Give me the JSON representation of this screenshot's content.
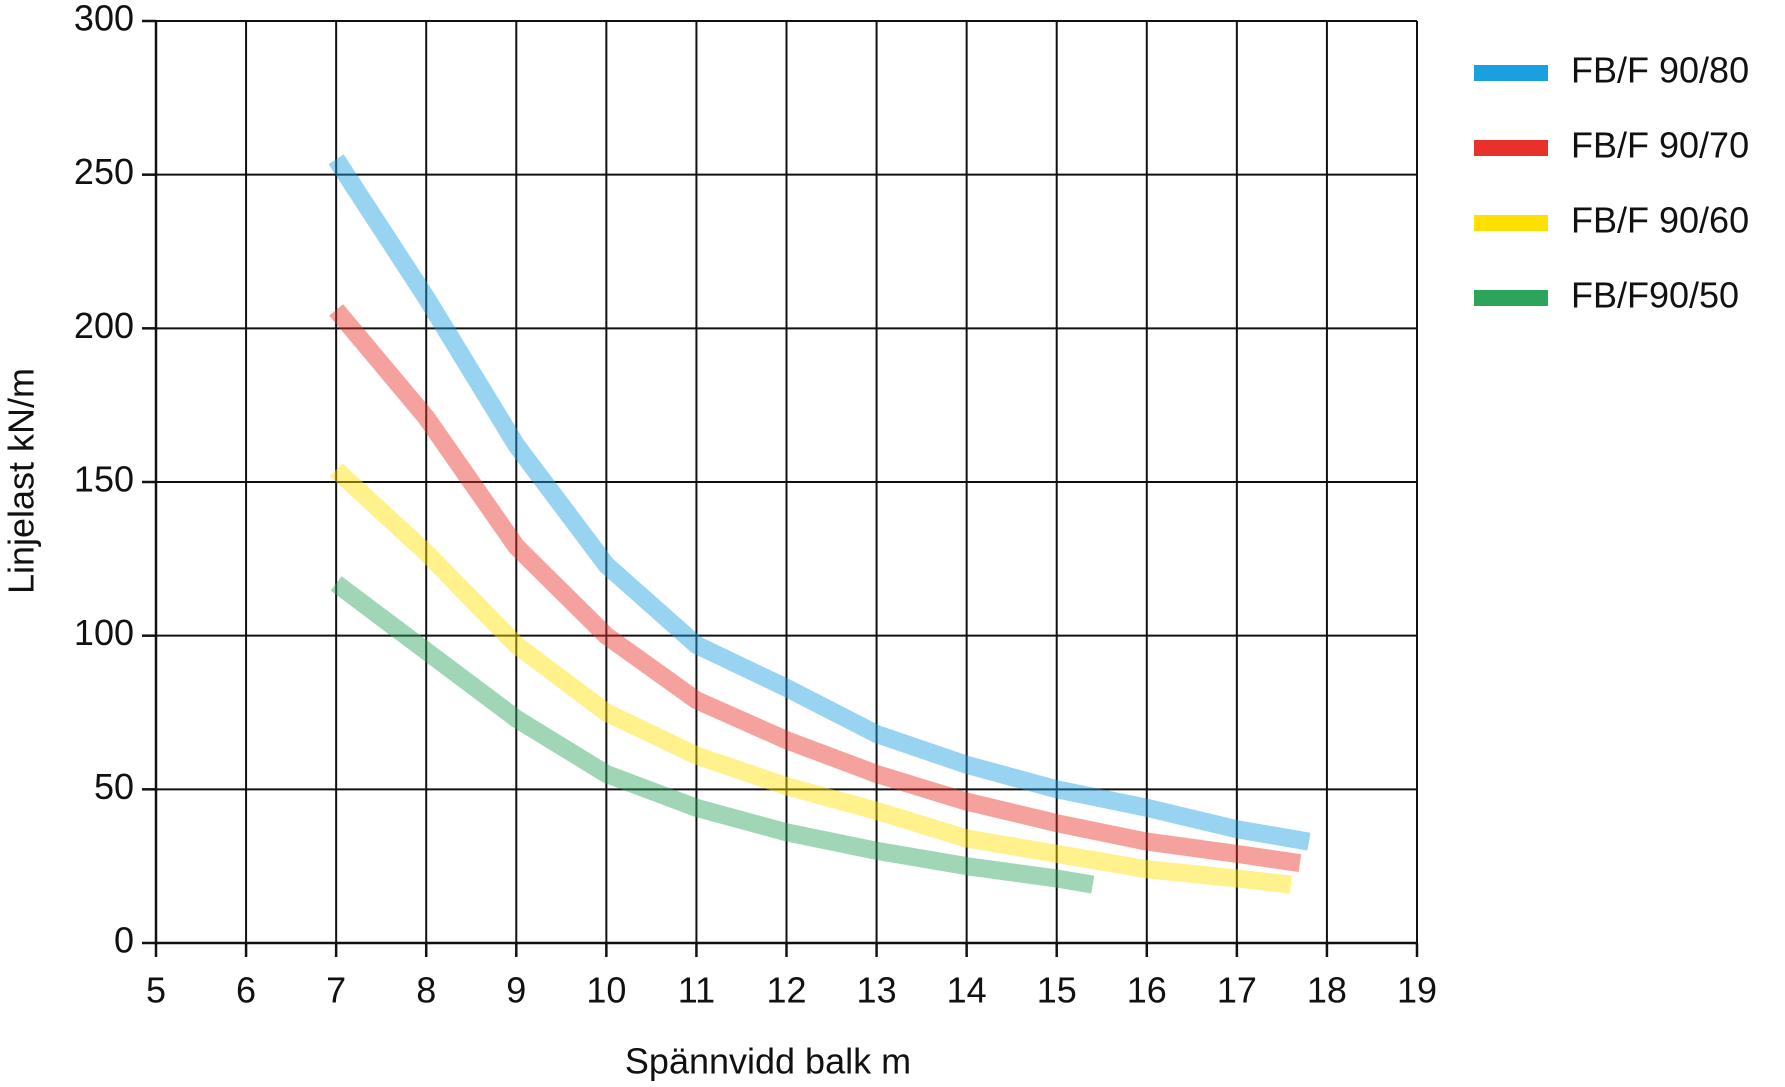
{
  "chart_data": {
    "type": "line",
    "x_label": "Spännvidd balk m",
    "y_label": "Linjelast kN/m",
    "xlim": [
      5,
      19
    ],
    "xticks": [
      5,
      6,
      7,
      8,
      9,
      10,
      11,
      12,
      13,
      14,
      15,
      16,
      17,
      18,
      19
    ],
    "ylim": [
      0,
      300
    ],
    "yticks": [
      0,
      50,
      100,
      150,
      200,
      250,
      300
    ],
    "grid": true,
    "legend": "right",
    "series": [
      {
        "name": "FB/F 90/80",
        "color": "#1a9fe0",
        "x": [
          7,
          8,
          9,
          10,
          11,
          12,
          13,
          14,
          15,
          16,
          17,
          17.8
        ],
        "values": [
          255,
          210,
          162,
          123,
          97,
          83,
          68,
          58,
          50,
          44,
          37,
          33
        ]
      },
      {
        "name": "FB/F 90/70",
        "color": "#e8312a",
        "x": [
          7,
          8,
          9,
          10,
          11,
          12,
          13,
          14,
          15,
          16,
          17,
          17.7
        ],
        "values": [
          206,
          171,
          129,
          100,
          79,
          66,
          55,
          46,
          39,
          33,
          29,
          26
        ]
      },
      {
        "name": "FB/F 90/60",
        "color": "#ffe000",
        "x": [
          7,
          8,
          9,
          10,
          11,
          12,
          13,
          14,
          15,
          16,
          17,
          17.6
        ],
        "values": [
          154,
          127,
          97,
          75,
          61,
          51,
          43,
          34,
          29,
          24,
          21,
          19
        ]
      },
      {
        "name": "FB/F90/50",
        "color": "#2ca55a",
        "x": [
          7,
          8,
          9,
          10,
          11,
          12,
          13,
          14,
          15,
          15.4
        ],
        "values": [
          117,
          95,
          73,
          55,
          44,
          36,
          30,
          25,
          21,
          19
        ]
      }
    ]
  }
}
